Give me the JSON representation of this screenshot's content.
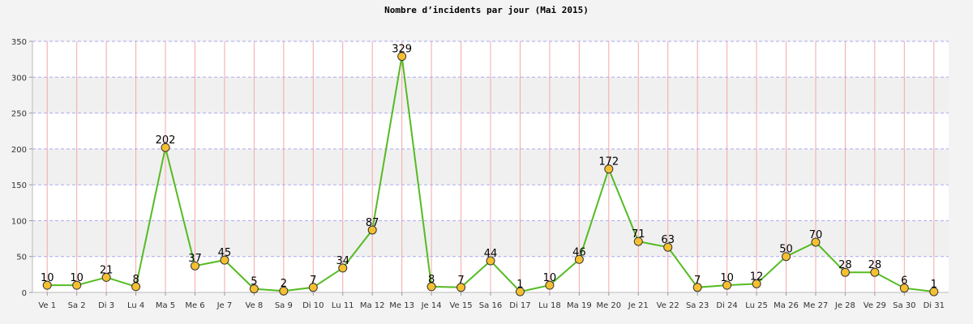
{
  "chart_data": {
    "type": "line",
    "title": "Nombre d’incidents par jour (Mai 2015)",
    "xlabel": "",
    "ylabel": "",
    "ylim": [
      0,
      350
    ],
    "yticks": [
      0,
      50,
      100,
      150,
      200,
      250,
      300,
      350
    ],
    "categories": [
      "Ve 1",
      "Sa 2",
      "Di 3",
      "Lu 4",
      "Ma 5",
      "Me 6",
      "Je 7",
      "Ve 8",
      "Sa 9",
      "Di 10",
      "Lu 11",
      "Ma 12",
      "Me 13",
      "Je 14",
      "Ve 15",
      "Sa 16",
      "Di 17",
      "Lu 18",
      "Ma 19",
      "Me 20",
      "Je 21",
      "Ve 22",
      "Sa 23",
      "Di 24",
      "Lu 25",
      "Ma 26",
      "Me 27",
      "Je 28",
      "Ve 29",
      "Sa 30",
      "Di 31"
    ],
    "series": [
      {
        "values": [
          10,
          10,
          21,
          8,
          202,
          37,
          45,
          5,
          2,
          7,
          34,
          87,
          329,
          8,
          7,
          44,
          1,
          10,
          46,
          172,
          71,
          63,
          7,
          10,
          12,
          50,
          70,
          28,
          28,
          6,
          1
        ]
      }
    ],
    "grid": true,
    "colors": {
      "line": "#55bb22",
      "marker_fill": "#f5c030",
      "marker_stroke": "#333333",
      "vgrid": "#f4a8a8",
      "hgrid": "#aaaaee",
      "band_light": "#ffffff",
      "band_dark": "#f0f0f0",
      "page_bg": "#f3f3f3"
    }
  }
}
